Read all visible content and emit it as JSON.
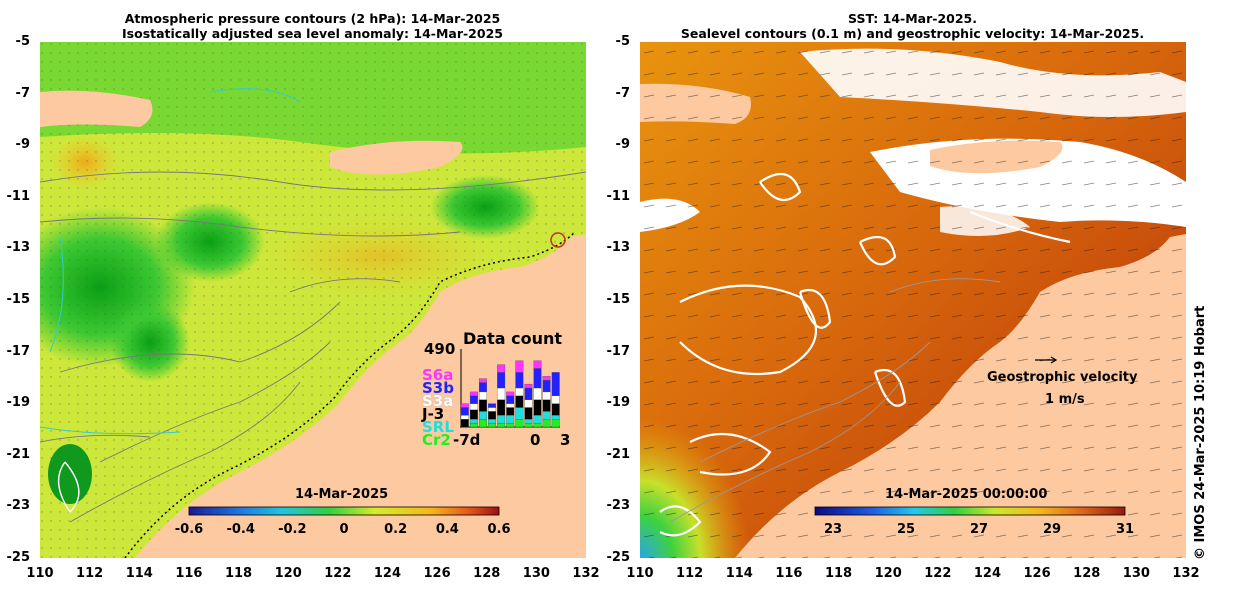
{
  "left_panel": {
    "title_line1": "Atmospheric pressure contours (2 hPa): 14-Mar-2025",
    "title_line2": "Isostatically adjusted sea level anomaly: 14-Mar-2025",
    "colorbar_label": "14-Mar-2025",
    "colorbar_ticks": [
      "-0.6",
      "-0.4",
      "-0.2",
      "0",
      "0.2",
      "0.4",
      "0.6"
    ],
    "colors": {
      "land": "#fdc9a0",
      "ocean_mid": "#c6ec3c",
      "low": "#12b41e",
      "high": "#f2b420"
    }
  },
  "right_panel": {
    "title_line1": "SST: 14-Mar-2025.",
    "title_line2": "Sealevel contours (0.1 m) and geostrophic velocity: 14-Mar-2025.",
    "colorbar_label": "14-Mar-2025 00:00:00",
    "colorbar_ticks": [
      "23",
      "25",
      "27",
      "29",
      "31"
    ],
    "velocity_label": "Geostrophic velocity",
    "velocity_scale": "1 m/s",
    "colors": {
      "land": "#fdc9a0",
      "warm": "#c2500c",
      "mid": "#e8960a",
      "cool": "#3cd23c"
    }
  },
  "axes": {
    "y_ticks": [
      "-5",
      "-7",
      "-9",
      "-11",
      "-13",
      "-15",
      "-17",
      "-19",
      "-21",
      "-23",
      "-25"
    ],
    "x_ticks": [
      "110",
      "112",
      "114",
      "116",
      "118",
      "120",
      "122",
      "124",
      "126",
      "128",
      "130",
      "132"
    ]
  },
  "data_count": {
    "title": "Data count",
    "max_label": "490",
    "x_start": "-7d",
    "x_zero": "0",
    "x_end": "3",
    "missions": [
      {
        "name": "S6a",
        "color": "#ff33ff"
      },
      {
        "name": "S3b",
        "color": "#2222ff"
      },
      {
        "name": "S3a",
        "color": "#ffffff"
      },
      {
        "name": "J-3",
        "color": "#000000"
      },
      {
        "name": "SRL",
        "color": "#22dddd"
      },
      {
        "name": "Cr2",
        "color": "#22ee22"
      }
    ],
    "bars": [
      [
        0.05,
        0.1,
        0.05,
        0.1,
        0.0,
        0.0
      ],
      [
        0.05,
        0.1,
        0.08,
        0.12,
        0.05,
        0.05
      ],
      [
        0.05,
        0.12,
        0.1,
        0.15,
        0.1,
        0.1
      ],
      [
        0.0,
        0.05,
        0.05,
        0.1,
        0.05,
        0.05
      ],
      [
        0.1,
        0.2,
        0.15,
        0.2,
        0.1,
        0.05
      ],
      [
        0.05,
        0.1,
        0.05,
        0.1,
        0.1,
        0.05
      ],
      [
        0.15,
        0.2,
        0.1,
        0.15,
        0.15,
        0.1
      ],
      [
        0.05,
        0.15,
        0.1,
        0.15,
        0.05,
        0.05
      ],
      [
        0.1,
        0.25,
        0.15,
        0.2,
        0.1,
        0.05
      ],
      [
        0.05,
        0.15,
        0.1,
        0.15,
        0.1,
        0.1
      ],
      [
        0.0,
        0.3,
        0.1,
        0.15,
        0.05,
        0.1
      ]
    ]
  },
  "credit": "© IMOS 24-Mar-2025 10:19 Hobart"
}
